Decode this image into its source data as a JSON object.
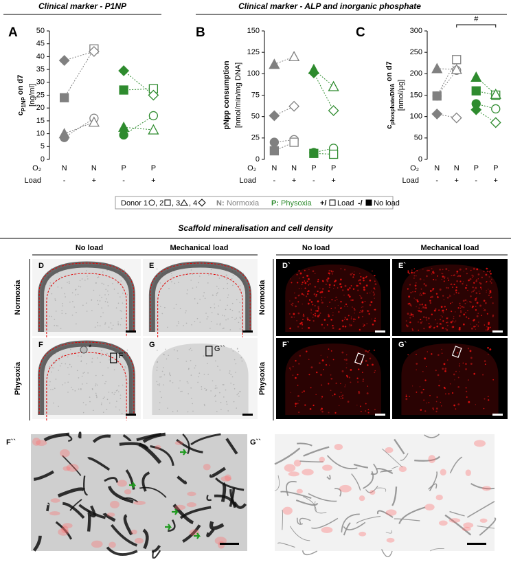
{
  "headers": [
    "Clinical marker - P1NP",
    "Clinical marker - ALP and inorganic phosphate",
    "Scaffold mineralisation and cell density"
  ],
  "chart_data": [
    {
      "type": "dotplot",
      "panel": "A",
      "ylabel": {
        "main": "c",
        "sub": "P1NP",
        "rest": " on d7"
      },
      "yunit": "[ng/ml]",
      "ylim": [
        0,
        50
      ],
      "yticks": [
        0,
        5,
        10,
        15,
        20,
        25,
        30,
        35,
        40,
        45,
        50
      ],
      "row_labels": [
        "O₂",
        "Load"
      ],
      "categories": [
        "N",
        "N",
        "P",
        "P"
      ],
      "load": [
        "-",
        "+",
        "-",
        "+"
      ],
      "category_colors": [
        "#808080",
        "#808080",
        "#2e8b2e",
        "#2e8b2e"
      ],
      "category_filled": [
        true,
        false,
        true,
        false
      ],
      "series": [
        {
          "marker": "circle",
          "values": [
            8.5,
            16,
            9.5,
            17
          ]
        },
        {
          "marker": "square",
          "values": [
            24,
            43,
            27,
            27.5
          ]
        },
        {
          "marker": "triangle",
          "values": [
            10,
            14.5,
            12.5,
            11.5
          ]
        },
        {
          "marker": "diamond",
          "values": [
            38.5,
            42,
            34.5,
            25
          ]
        }
      ]
    },
    {
      "type": "dotplot",
      "panel": "B",
      "ylabel": {
        "main": "pNpp consumption"
      },
      "yunit": "[nmol/min/mg DNA]",
      "ylim": [
        0,
        150
      ],
      "yticks": [
        0,
        25,
        50,
        75,
        100,
        125,
        150
      ],
      "row_labels": [
        "O₂",
        "Load"
      ],
      "categories": [
        "N",
        "N",
        "P",
        "P"
      ],
      "load": [
        "-",
        "+",
        "-",
        "+"
      ],
      "category_colors": [
        "#808080",
        "#808080",
        "#2e8b2e",
        "#2e8b2e"
      ],
      "category_filled": [
        true,
        false,
        true,
        false
      ],
      "series": [
        {
          "marker": "circle",
          "values": [
            20,
            23,
            8,
            13
          ]
        },
        {
          "marker": "square",
          "values": [
            10,
            20,
            7,
            6
          ]
        },
        {
          "marker": "triangle",
          "values": [
            111,
            120,
            105,
            85
          ]
        },
        {
          "marker": "diamond",
          "values": [
            51,
            62,
            101,
            57
          ]
        }
      ]
    },
    {
      "type": "dotplot",
      "panel": "C",
      "ylabel": {
        "main": "c",
        "sub": "phosphate/DNA",
        "rest": " on d7"
      },
      "yunit": "[nmol/µg]",
      "ylim": [
        0,
        300
      ],
      "yticks": [
        0,
        50,
        100,
        150,
        200,
        250,
        300
      ],
      "row_labels": [
        "O₂",
        "Load"
      ],
      "categories": [
        "N",
        "N",
        "P",
        "P"
      ],
      "load": [
        "-",
        "+",
        "-",
        "+"
      ],
      "category_colors": [
        "#808080",
        "#808080",
        "#2e8b2e",
        "#2e8b2e"
      ],
      "category_filled": [
        true,
        false,
        true,
        false
      ],
      "significance": "#",
      "series": [
        {
          "marker": "circle",
          "values": [
            148,
            208,
            130,
            118
          ]
        },
        {
          "marker": "square",
          "values": [
            148,
            233,
            160,
            150
          ]
        },
        {
          "marker": "triangle",
          "values": [
            212,
            210,
            192,
            152
          ]
        },
        {
          "marker": "diamond",
          "values": [
            106,
            97,
            116,
            86
          ]
        }
      ]
    }
  ],
  "legend": {
    "donor": "Donor",
    "items": [
      "1",
      ", 2",
      ", 3",
      ", 4"
    ],
    "n_key": "N:",
    "n_text": "Normoxia",
    "p_key": "P:",
    "p_text": "Physoxia",
    "load_key": "+/",
    "load_text": "Load",
    "noload_key": "-/",
    "noload_text": "No load"
  },
  "imaging": {
    "columns": [
      "No load",
      "Mechanical load",
      "No load",
      "Mechanical load"
    ],
    "rows": [
      "Normoxia",
      "Physoxia",
      "Normoxia",
      "Physoxia"
    ],
    "panels": [
      "D",
      "E",
      "F",
      "G",
      "D`",
      "E`",
      "F`",
      "G`"
    ],
    "box_labels": [
      "F``",
      "G``"
    ],
    "asterisk": "*",
    "zoom_panels": [
      "F``",
      "G``"
    ]
  }
}
